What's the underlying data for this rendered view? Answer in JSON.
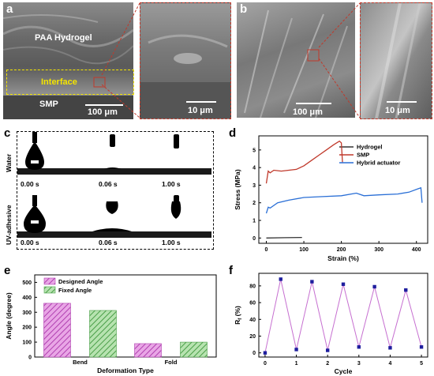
{
  "panel_a": {
    "letter": "a",
    "hydrogel_label": "PAA Hydrogel",
    "interface_label": "Interface",
    "smp_label": "SMP",
    "scale_main": "100 μm",
    "scale_zoom": "10 μm"
  },
  "panel_b": {
    "letter": "b",
    "scale_main": "100 μm",
    "scale_zoom": "10 μm"
  },
  "panel_c": {
    "letter": "c",
    "row1_label": "Water",
    "row2_label": "UV-adhesive",
    "row1_times": [
      "0.00 s",
      "0.06 s",
      "1.00 s"
    ],
    "row2_times": [
      "0.00 s",
      "0.06 s",
      "1.00 s"
    ]
  },
  "chart_d": {
    "letter": "d",
    "type": "line",
    "xlabel": "Strain (%)",
    "ylabel": "Stress (MPa)",
    "xlim": [
      -20,
      430
    ],
    "ylim": [
      -0.3,
      5.8
    ],
    "xticks": [
      "0",
      "100",
      "200",
      "300",
      "400"
    ],
    "yticks": [
      "0",
      "1",
      "2",
      "3",
      "4",
      "5"
    ],
    "series": [
      {
        "name": "Hydrogel",
        "color": "#333333",
        "x": [
          0,
          50,
          95
        ],
        "y": [
          0.0,
          0.02,
          0.03
        ]
      },
      {
        "name": "SMP",
        "color": "#c0392b",
        "x": [
          0,
          5,
          10,
          20,
          40,
          60,
          80,
          100,
          120,
          140,
          160,
          180,
          195,
          200,
          203
        ],
        "y": [
          3.1,
          3.8,
          3.7,
          3.85,
          3.8,
          3.85,
          3.9,
          4.1,
          4.4,
          4.7,
          5.0,
          5.3,
          5.5,
          5.4,
          4.3
        ]
      },
      {
        "name": "Hybrid actuator",
        "color": "#2a6fd6",
        "x": [
          0,
          5,
          10,
          30,
          60,
          100,
          150,
          200,
          240,
          260,
          300,
          350,
          380,
          405,
          412,
          415
        ],
        "y": [
          1.4,
          1.75,
          1.7,
          2.0,
          2.15,
          2.3,
          2.35,
          2.4,
          2.55,
          2.4,
          2.45,
          2.5,
          2.6,
          2.8,
          2.85,
          2.0
        ]
      }
    ]
  },
  "chart_e": {
    "letter": "e",
    "type": "bar",
    "xlabel": "Deformation Type",
    "ylabel": "Angle (degree)",
    "ylim": [
      0,
      550
    ],
    "yticks": [
      "0",
      "100",
      "200",
      "300",
      "400",
      "500"
    ],
    "categories": [
      "Bend",
      "Fold"
    ],
    "series": [
      {
        "name": "Designed Angle",
        "color": "#e9a6e6",
        "hatch": "#b040b0",
        "values": [
          360,
          90
        ]
      },
      {
        "name": "Fixed Angle",
        "color": "#b7e3b0",
        "hatch": "#4a9e48",
        "values": [
          312,
          100
        ]
      }
    ]
  },
  "chart_f": {
    "letter": "f",
    "type": "line",
    "xlabel": "Cycle",
    "ylabel": "R",
    "ylabel_sub": "f",
    "ylabel_unit": " (%)",
    "xlim": [
      -0.2,
      5.2
    ],
    "ylim": [
      -5,
      95
    ],
    "xticks": [
      "0",
      "1",
      "2",
      "3",
      "4",
      "5"
    ],
    "yticks": [
      "0",
      "20",
      "40",
      "60",
      "80"
    ],
    "series": [
      {
        "name": "",
        "color": "#c66fd0",
        "marker": "#1e1e9e",
        "x": [
          0,
          0.5,
          1,
          1.5,
          2,
          2.5,
          3,
          3.5,
          4,
          4.5,
          5
        ],
        "y": [
          0,
          88,
          4,
          85,
          3,
          82,
          7,
          79,
          6,
          75,
          7
        ]
      }
    ]
  }
}
